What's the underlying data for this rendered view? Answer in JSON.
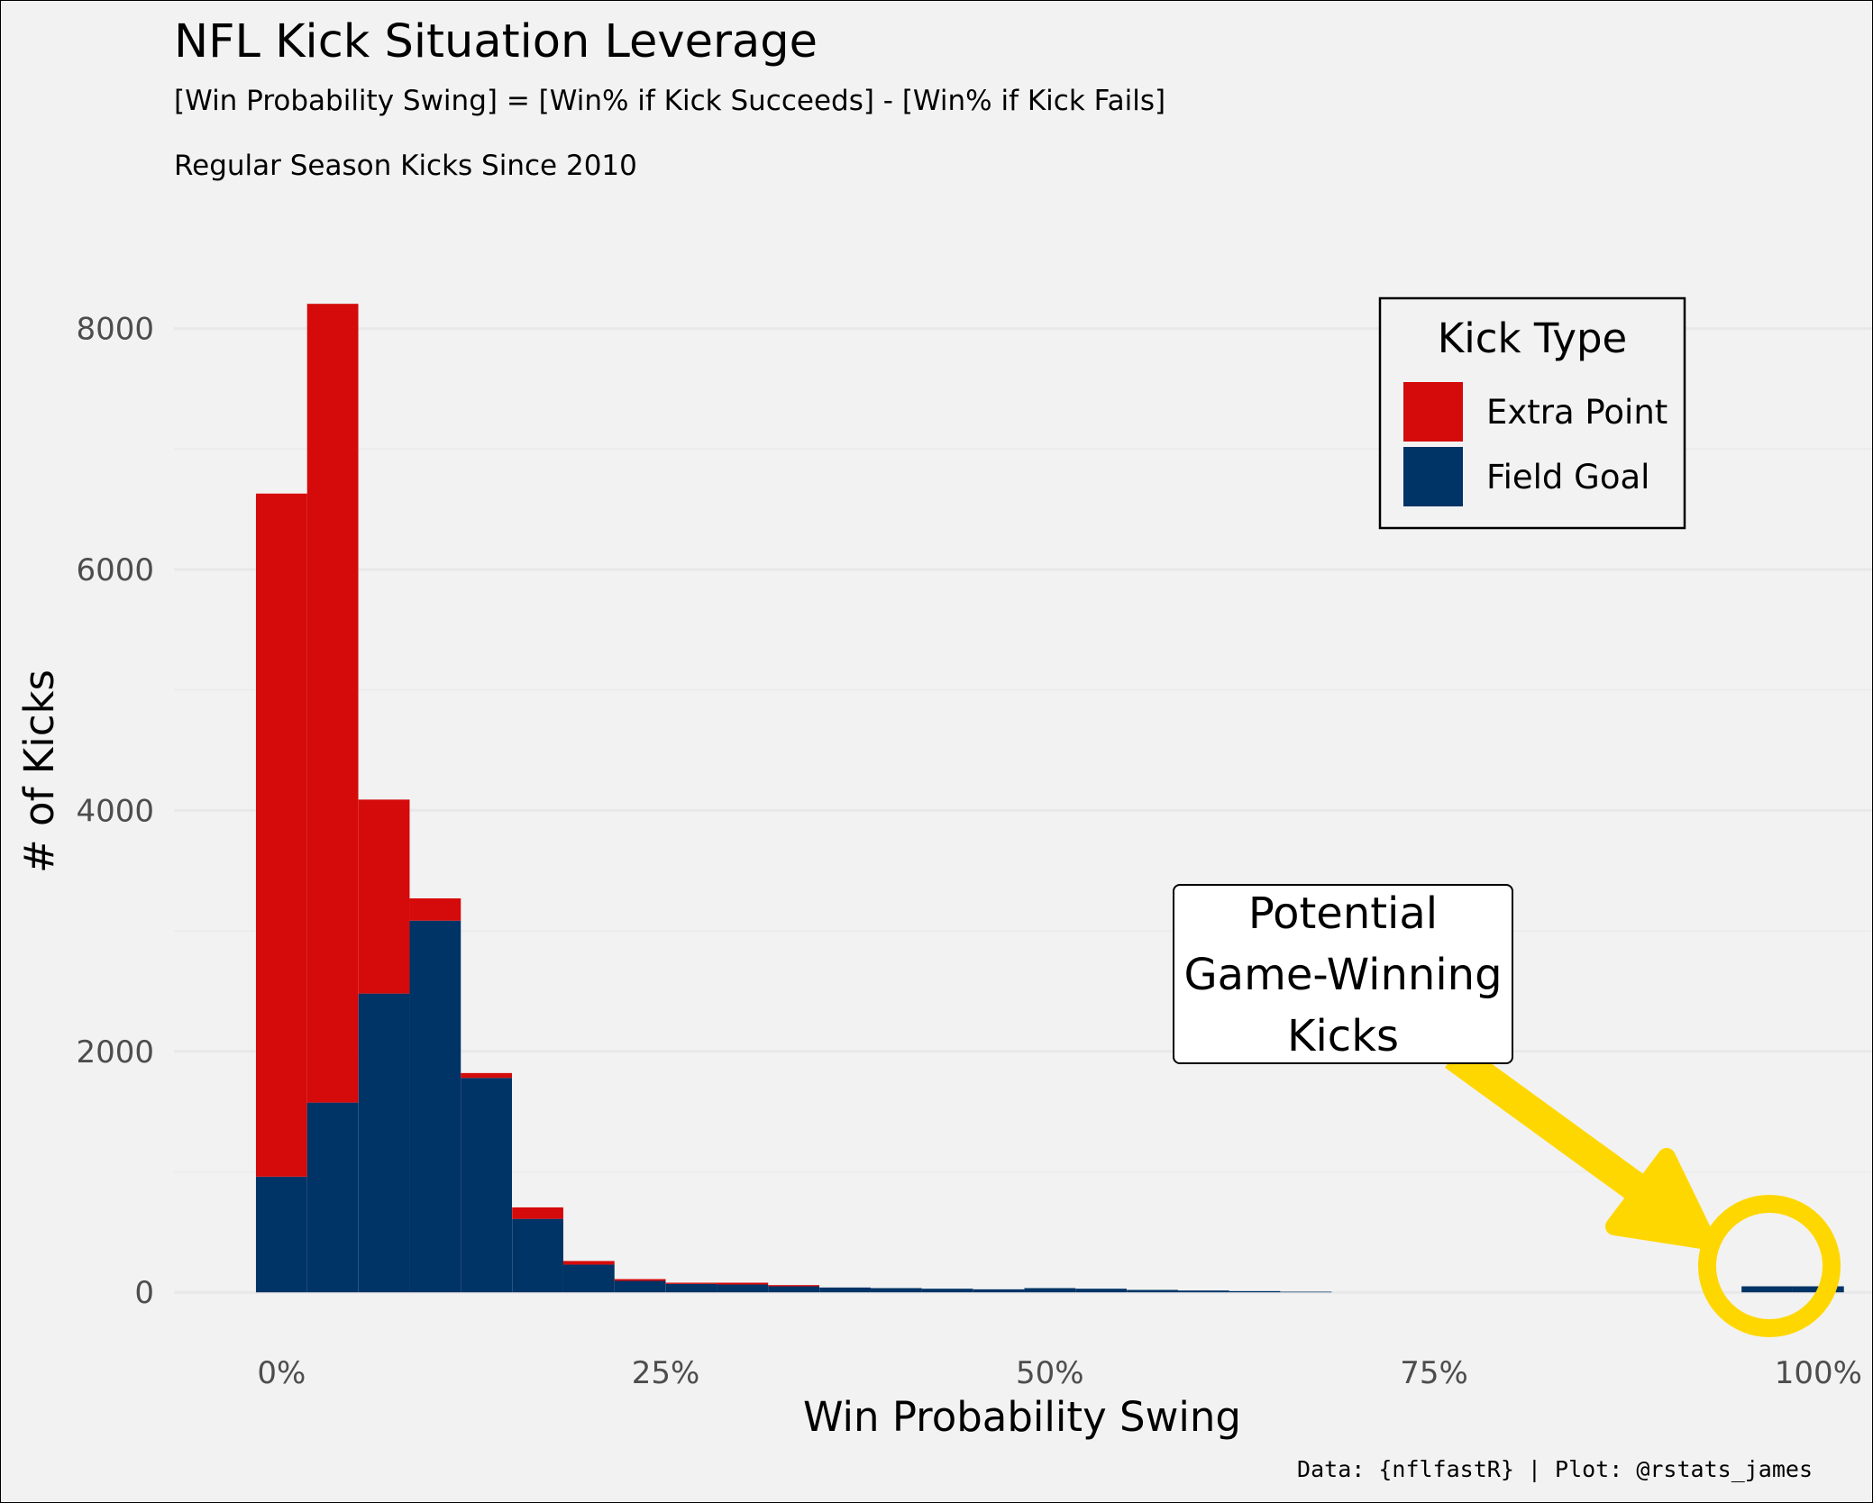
{
  "chart_data": {
    "type": "bar",
    "title": "NFL Kick Situation Leverage",
    "subtitle": "[Win Probability Swing] = [Win% if Kick Succeeds] - [Win% if Kick Fails]",
    "subtitle2": "Regular Season Kicks Since 2010",
    "xlabel": "Win Probability Swing",
    "ylabel": "# of Kicks",
    "caption": "Data: {nflfastR} | Plot: @rstats_james",
    "xlim": [
      -0.07,
      1.035
    ],
    "ylim": [
      -350,
      8700
    ],
    "x_ticks": [
      0,
      0.25,
      0.5,
      0.75,
      1.0
    ],
    "x_tick_labels": [
      "0%",
      "25%",
      "50%",
      "75%",
      "100%"
    ],
    "y_ticks": [
      0,
      2000,
      4000,
      6000,
      8000
    ],
    "y_tick_labels": [
      "0",
      "2000",
      "4000",
      "6000",
      "8000"
    ],
    "grid": true,
    "stacked": true,
    "bin_width": 0.0333,
    "bin_centers": [
      0.0,
      0.0333,
      0.0667,
      0.1,
      0.1333,
      0.1667,
      0.2,
      0.2333,
      0.2667,
      0.3,
      0.3333,
      0.3667,
      0.4,
      0.4333,
      0.4667,
      0.5,
      0.5333,
      0.5667,
      0.6,
      0.6333,
      0.6667,
      0.9667,
      1.0
    ],
    "series": [
      {
        "name": "Field Goal",
        "color": "#003366",
        "values": [
          960,
          1575,
          2480,
          3085,
          1780,
          610,
          230,
          95,
          70,
          65,
          50,
          40,
          35,
          30,
          25,
          35,
          30,
          20,
          15,
          10,
          5,
          50,
          50
        ]
      },
      {
        "name": "Extra Point",
        "color": "#d50a0a",
        "values": [
          5670,
          6630,
          1610,
          185,
          40,
          95,
          30,
          15,
          10,
          15,
          10,
          0,
          0,
          0,
          0,
          0,
          0,
          0,
          0,
          0,
          0,
          0,
          0
        ]
      }
    ],
    "legend": {
      "title": "Kick Type",
      "position": "top-right",
      "entries": [
        {
          "label": "Extra Point",
          "color": "#d50a0a"
        },
        {
          "label": "Field Goal",
          "color": "#003366"
        }
      ]
    },
    "annotation": {
      "lines": [
        "Potential",
        "Game-Winning",
        "Kicks"
      ],
      "highlight_color": "#ffd700"
    }
  }
}
